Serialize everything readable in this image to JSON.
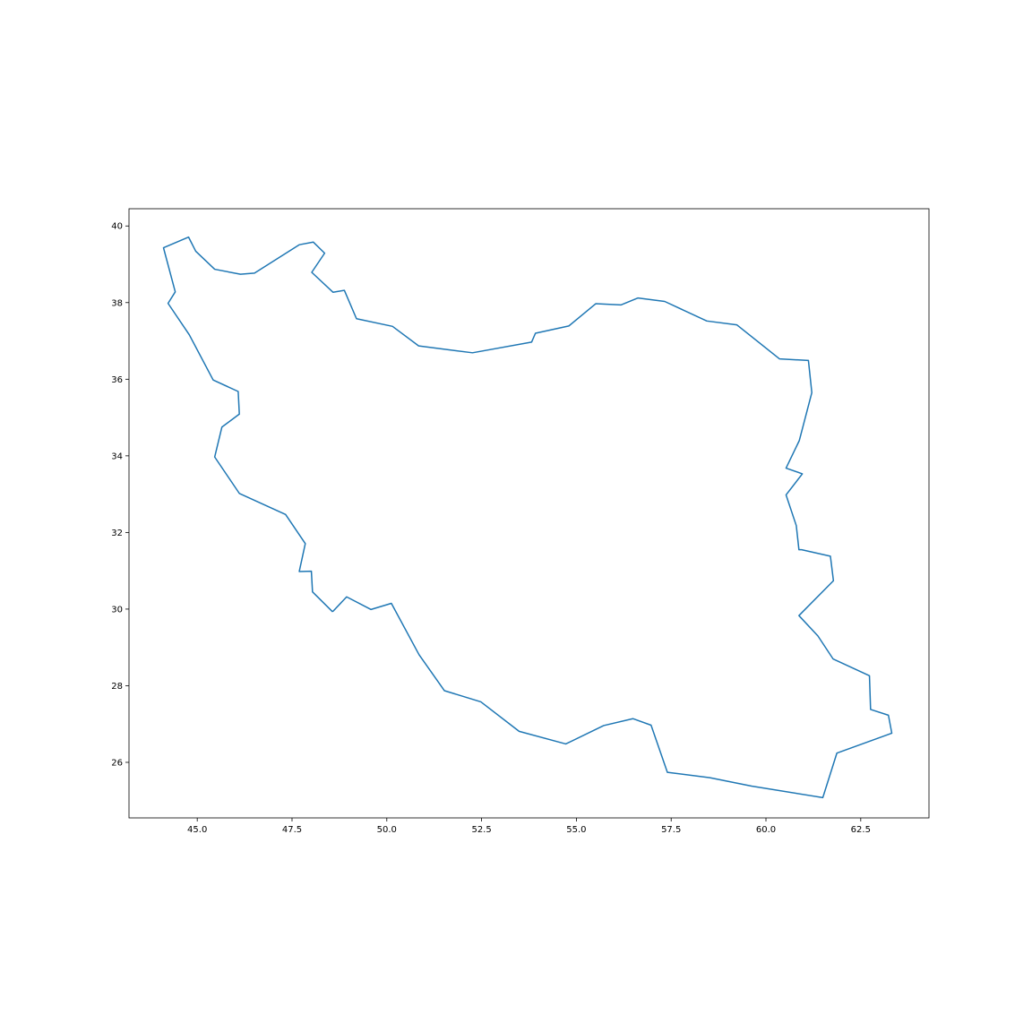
{
  "chart_data": {
    "type": "line",
    "title": "",
    "xlabel": "",
    "ylabel": "",
    "xlim": [
      43.2,
      64.3
    ],
    "ylim": [
      24.55,
      40.45
    ],
    "x_ticks": [
      45.0,
      47.5,
      50.0,
      52.5,
      55.0,
      57.5,
      60.0,
      62.5
    ],
    "x_tick_labels": [
      "45.0",
      "47.5",
      "50.0",
      "52.5",
      "55.0",
      "57.5",
      "60.0",
      "62.5"
    ],
    "y_ticks": [
      26,
      28,
      30,
      32,
      34,
      36,
      38,
      40
    ],
    "y_tick_labels": [
      "26",
      "28",
      "30",
      "32",
      "34",
      "36",
      "38",
      "40"
    ],
    "grid": false,
    "legend": false,
    "series": [
      {
        "color": "#1f77b4",
        "x": [
          48.57,
          48.04,
          48.01,
          47.69,
          47.85,
          47.33,
          46.11,
          45.46,
          45.65,
          46.11,
          46.08,
          45.42,
          44.79,
          44.23,
          44.42,
          44.11,
          44.77,
          44.96,
          45.46,
          46.14,
          46.51,
          47.69,
          48.06,
          48.36,
          48.02,
          48.58,
          48.88,
          49.2,
          50.15,
          50.84,
          52.26,
          53.82,
          53.92,
          54.8,
          55.51,
          56.18,
          56.62,
          57.33,
          58.44,
          59.23,
          60.36,
          61.12,
          61.21,
          60.88,
          60.53,
          60.96,
          60.53,
          60.8,
          60.87,
          60.94,
          61.7,
          61.78,
          60.87,
          61.37,
          61.77,
          62.73,
          62.76,
          63.23,
          63.32,
          61.87,
          61.5,
          59.62,
          58.52,
          57.4,
          56.97,
          56.49,
          55.72,
          54.72,
          53.49,
          52.48,
          51.52,
          50.85,
          50.12,
          49.58,
          48.94,
          48.57
        ],
        "y": [
          29.93,
          30.45,
          30.99,
          30.98,
          31.71,
          32.47,
          33.02,
          33.97,
          34.75,
          35.09,
          35.68,
          35.98,
          37.16,
          37.98,
          38.28,
          39.43,
          39.71,
          39.34,
          38.87,
          38.74,
          38.77,
          39.51,
          39.58,
          39.29,
          38.79,
          38.27,
          38.32,
          37.58,
          37.38,
          36.87,
          36.69,
          36.97,
          37.2,
          37.39,
          37.97,
          37.94,
          38.12,
          38.03,
          37.52,
          37.42,
          36.53,
          36.49,
          35.65,
          34.4,
          33.68,
          33.53,
          32.98,
          32.18,
          31.55,
          31.55,
          31.38,
          30.74,
          29.83,
          29.3,
          28.7,
          28.26,
          27.38,
          27.23,
          26.76,
          26.24,
          25.08,
          25.38,
          25.6,
          25.74,
          26.97,
          27.14,
          26.96,
          26.48,
          26.81,
          27.58,
          27.87,
          28.81,
          30.15,
          29.99,
          30.32,
          29.93
        ]
      }
    ]
  }
}
